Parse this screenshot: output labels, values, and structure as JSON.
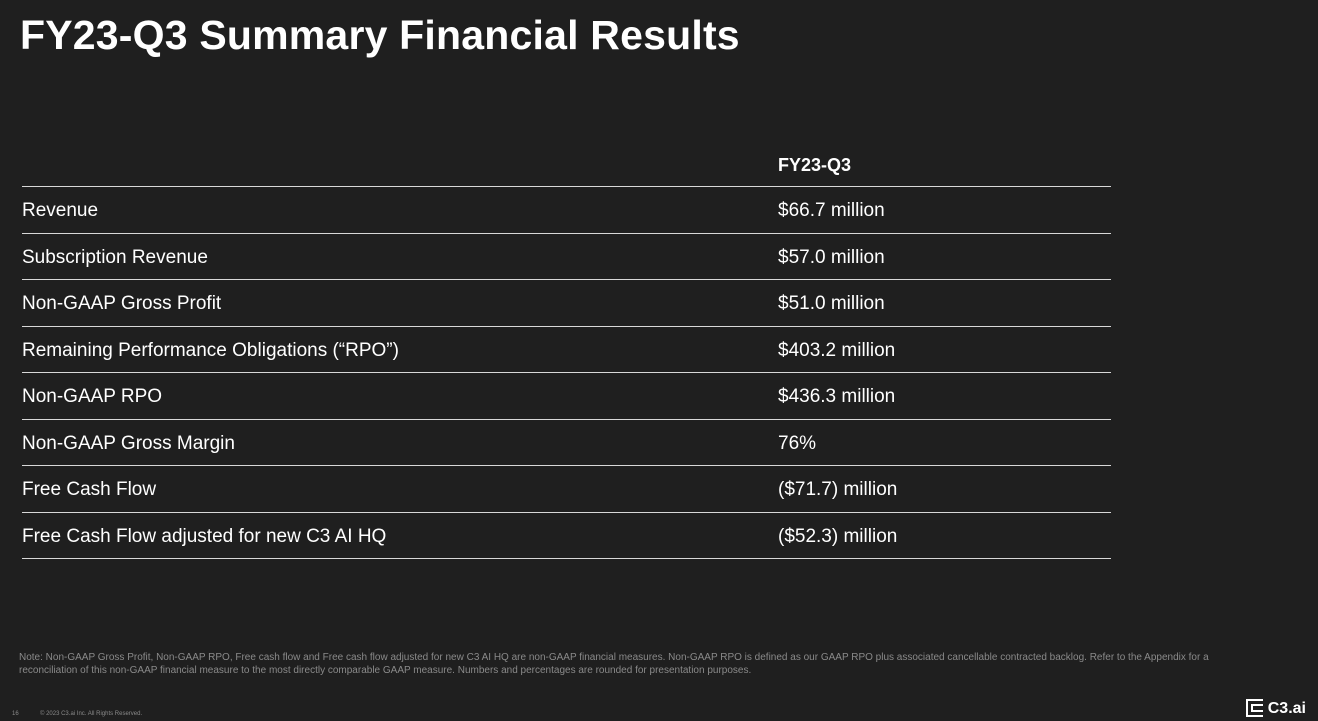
{
  "slide": {
    "title": "FY23-Q3 Summary Financial Results"
  },
  "table": {
    "column_header": "FY23-Q3",
    "rows": [
      {
        "label": "Revenue",
        "value": "$66.7 million"
      },
      {
        "label": "Subscription Revenue",
        "value": "$57.0 million"
      },
      {
        "label": "Non-GAAP Gross Profit",
        "value": "$51.0 million"
      },
      {
        "label": "Remaining Performance Obligations (“RPO”)",
        "value": "$403.2 million"
      },
      {
        "label": "Non-GAAP RPO",
        "value": "$436.3 million"
      },
      {
        "label": "Non-GAAP Gross Margin",
        "value": "76%"
      },
      {
        "label": "Free Cash Flow",
        "value": "($71.7) million"
      },
      {
        "label": "Free Cash Flow adjusted for new C3 AI HQ",
        "value": "($52.3) million"
      }
    ]
  },
  "footnote": "Note: Non-GAAP Gross Profit, Non-GAAP RPO, Free cash flow and Free cash flow adjusted for new C3 AI HQ are non-GAAP financial measures. Non-GAAP RPO is defined as our GAAP RPO plus associated cancellable contracted backlog. Refer to the Appendix for a reconciliation of this non-GAAP financial measure to the most directly comparable GAAP measure. Numbers and percentages are rounded for presentation purposes.",
  "footer": {
    "page_number": "16",
    "copyright": "© 2023 C3.ai Inc. All Rights Reserved.",
    "logo_text": "C3.ai",
    "logo_icon": "c3-logo-icon"
  },
  "colors": {
    "background": "#1f1f1f",
    "text": "#ffffff",
    "rule": "#d8d8d8",
    "muted": "#8a8a8a"
  }
}
